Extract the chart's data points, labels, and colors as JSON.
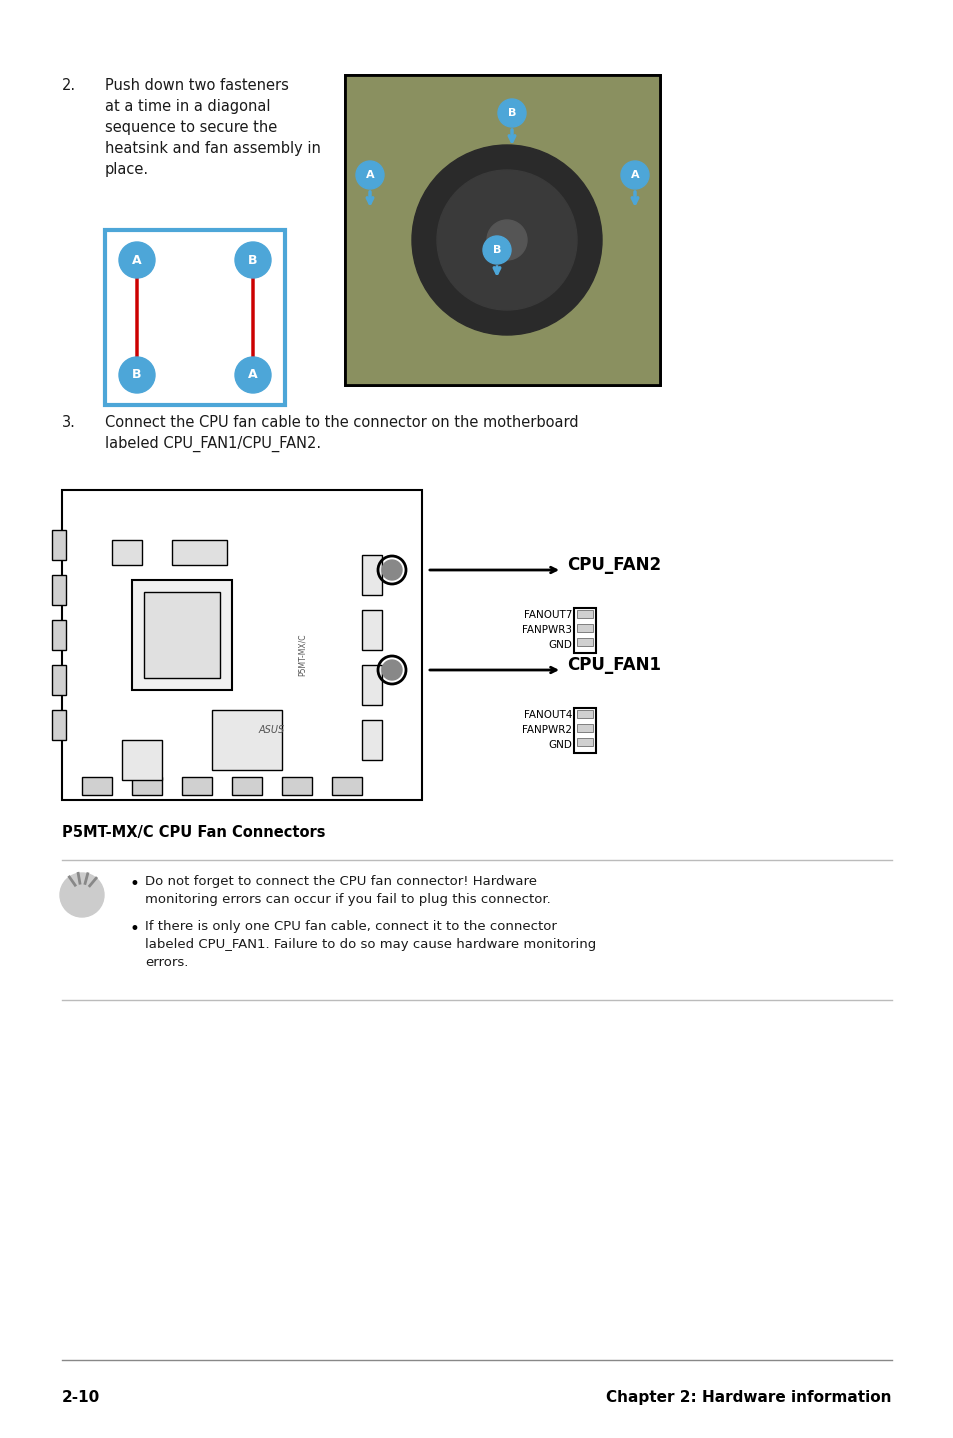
{
  "page_bg": "#ffffff",
  "page_number": "2-10",
  "chapter_title": "Chapter 2: Hardware information",
  "step2_number": "2.",
  "step2_text": "Push down two fasteners\nat a time in a diagonal\nsequence to secure the\nheatsink and fan assembly in\nplace.",
  "step3_number": "3.",
  "step3_text": "Connect the CPU fan cable to the connector on the motherboard\nlabeled CPU_FAN1/CPU_FAN2.",
  "diagram_caption": "P5MT-MX/C CPU Fan Connectors",
  "cpu_fan2_label": "CPU_FAN2",
  "cpu_fan1_label": "CPU_FAN1",
  "fanout7": "FANOUT7",
  "fanpwr3": "FANPWR3",
  "gnd_top": "GND",
  "fanout4": "FANOUT4",
  "fanpwr2": "FANPWR2",
  "gnd_bottom": "GND",
  "note_bullet1": "Do not forget to connect the CPU fan connector! Hardware\nmonitoring errors can occur if you fail to plug this connector.",
  "note_bullet2": "If there is only one CPU fan cable, connect it to the connector\nlabeled CPU_FAN1. Failure to do so may cause hardware monitoring\nerrors.",
  "blue_color": "#4da6d8",
  "red_color": "#cc0000",
  "dark_color": "#1a1a1a",
  "border_color": "#888888",
  "body_font_size": 10.5,
  "label_font_size": 11,
  "caption_font_size": 10.5,
  "footer_font_size": 11
}
